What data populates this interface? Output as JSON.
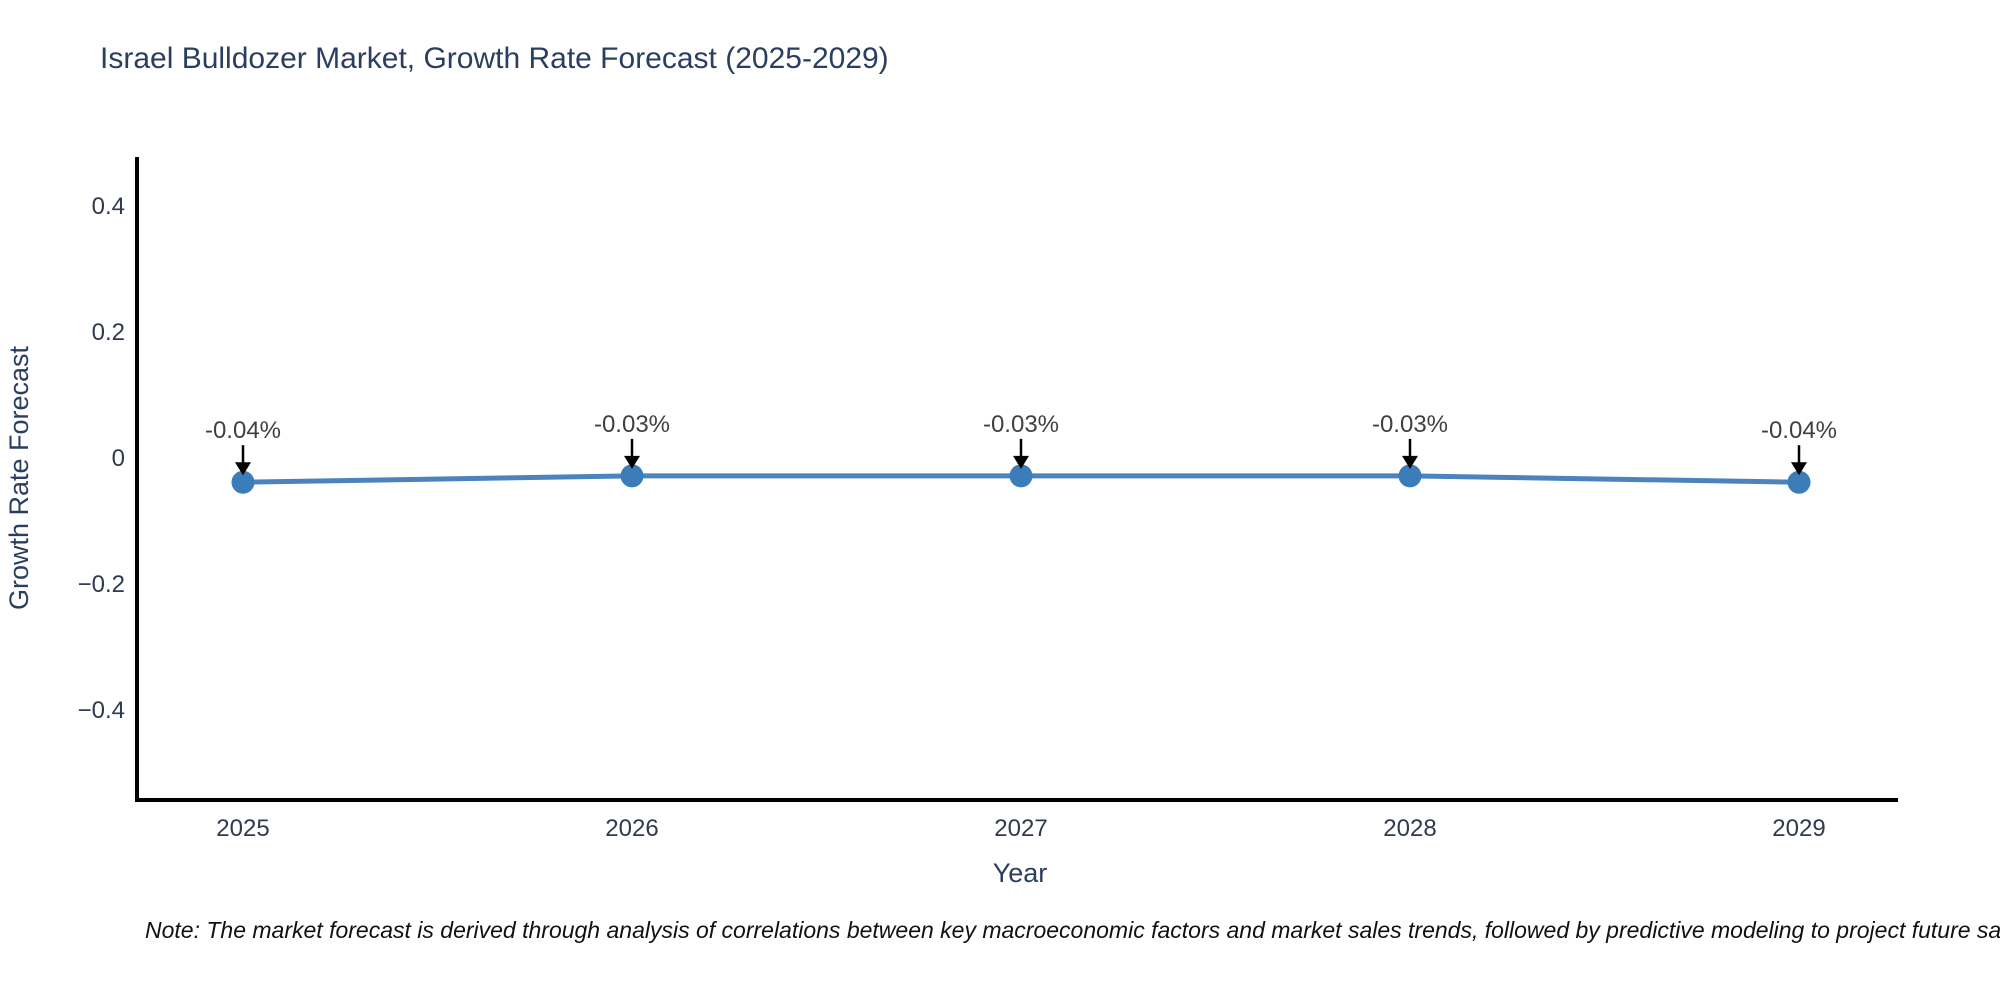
{
  "title": "Israel Bulldozer Market, Growth Rate Forecast (2025-2029)",
  "note": "Note: The market forecast is derived through analysis of correlations between key macroeconomic factors and market sales trends, followed by predictive modeling to project future sa",
  "chart_data": {
    "type": "line",
    "x": [
      2025,
      2026,
      2027,
      2028,
      2029
    ],
    "y": [
      -0.04,
      -0.03,
      -0.03,
      -0.03,
      -0.04
    ],
    "point_labels": [
      "-0.04%",
      "-0.03%",
      "-0.03%",
      "-0.03%",
      "-0.04%"
    ],
    "xticks": [
      "2025",
      "2026",
      "2027",
      "2028",
      "2029"
    ],
    "yticks": [
      {
        "value": 0.4,
        "label": "0.4"
      },
      {
        "value": 0.2,
        "label": "0.2"
      },
      {
        "value": 0,
        "label": "0"
      },
      {
        "value": -0.2,
        "label": "−0.2"
      },
      {
        "value": -0.4,
        "label": "−0.4"
      }
    ],
    "xlabel": "Year",
    "ylabel": "Growth Rate Forecast",
    "ylim": [
      -0.54,
      0.48
    ],
    "grid": false,
    "legend": false,
    "colors": {
      "line": "#4b84bc",
      "marker": "#3b7cba",
      "axis": "#000000",
      "arrow": "#000000",
      "title_text": "#2a3f5f",
      "tick_text": "#2f3b4c",
      "annotation_text": "#404040"
    }
  }
}
